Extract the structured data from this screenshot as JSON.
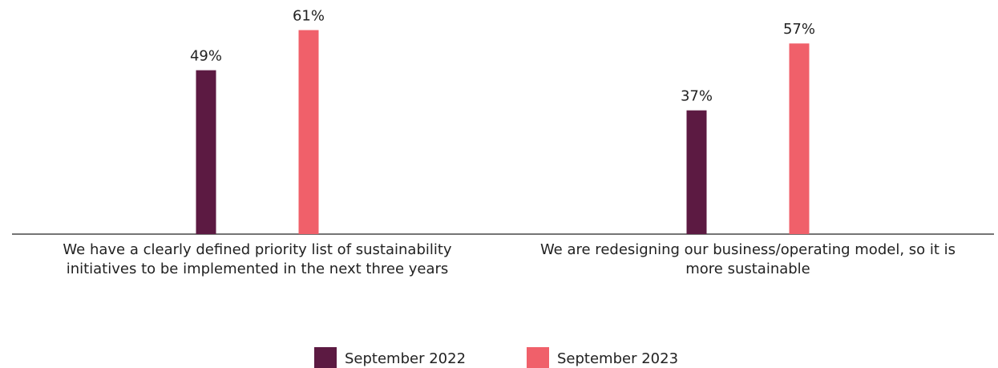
{
  "chart_data": {
    "type": "bar",
    "categories": [
      "We have a clearly defined priority list of sustainability initiatives to be implemented in the next three years",
      "We are redesigning our business/operating model, so it is more sustainable"
    ],
    "series": [
      {
        "name": "September 2022",
        "color": "#5c1a42",
        "values": [
          49,
          37
        ],
        "value_labels": [
          "49%",
          "37%"
        ]
      },
      {
        "name": "September 2023",
        "color": "#f0606a",
        "values": [
          61,
          57
        ],
        "value_labels": [
          "61%",
          "57%"
        ]
      }
    ],
    "ylim": [
      0,
      70
    ]
  }
}
